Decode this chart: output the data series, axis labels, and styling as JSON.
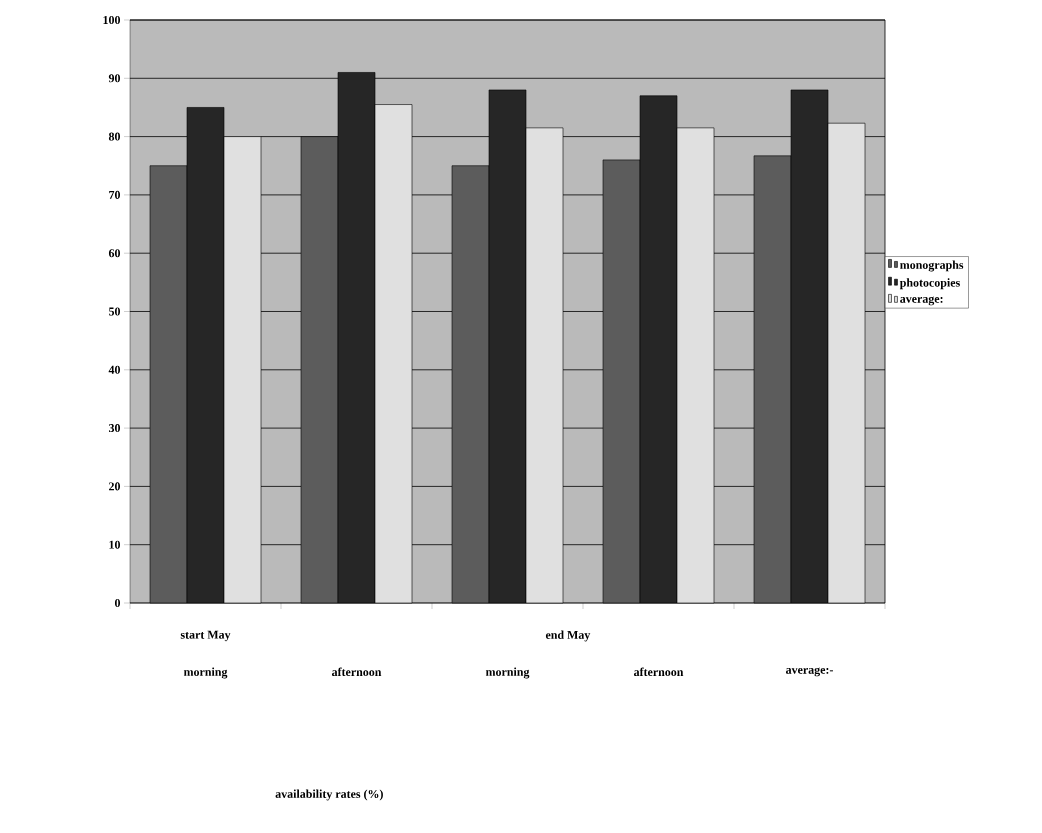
{
  "chart_data": {
    "type": "bar",
    "categories": [
      "morning",
      "afternoon",
      "morning",
      "afternoon",
      "average:-"
    ],
    "series": [
      {
        "name": "monographs",
        "color": "#5c5c5c",
        "values": [
          75,
          80,
          75,
          76,
          76.7
        ]
      },
      {
        "name": "photocopies",
        "color": "#262626",
        "values": [
          85,
          91,
          88,
          87,
          88
        ]
      },
      {
        "name": "average:",
        "color": "#e0e0e0",
        "values": [
          80,
          85.5,
          81.5,
          81.5,
          82.3
        ]
      }
    ],
    "annotations": [
      "start May",
      "end May",
      "availability rates (%)"
    ],
    "ylim": [
      0,
      100
    ],
    "yticks": [
      0,
      10,
      20,
      30,
      40,
      50,
      60,
      70,
      80,
      90,
      100
    ],
    "grid": "y",
    "legend": "right"
  }
}
